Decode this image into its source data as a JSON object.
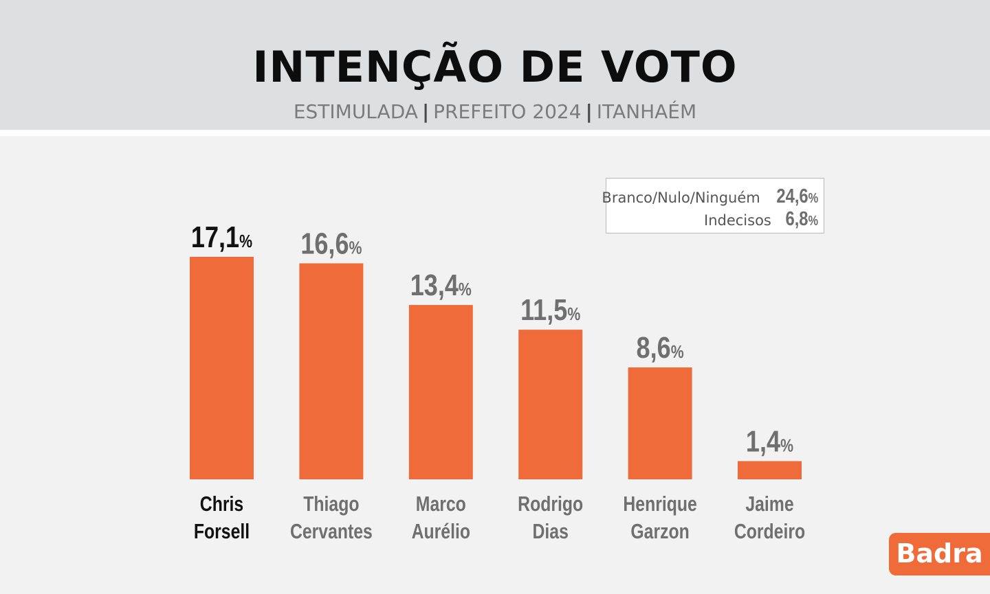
{
  "header": {
    "title": "INTENÇÃO DE VOTO",
    "subtitle_parts": [
      "ESTIMULADA",
      "PREFEITO 2024",
      "ITANHAÉM"
    ]
  },
  "legend": {
    "rows": [
      {
        "label": "Branco/Nulo/Ninguém",
        "value": "24,6",
        "unit": "%"
      },
      {
        "label": "Indecisos",
        "value": "6,8",
        "unit": "%"
      }
    ]
  },
  "logo": {
    "text": "Badra"
  },
  "colors": {
    "bar": "#ef6c3a",
    "highlight_text": "#111111",
    "muted_text": "#6f6f6f"
  },
  "chart_data": {
    "type": "bar",
    "categories": [
      [
        "Chris",
        "Forsell"
      ],
      [
        "Thiago",
        "Cervantes"
      ],
      [
        "Marco",
        "Aurélio"
      ],
      [
        "Rodrigo",
        "Dias"
      ],
      [
        "Henrique",
        "Garzon"
      ],
      [
        "Jaime",
        "Cordeiro"
      ]
    ],
    "values": [
      17.1,
      16.6,
      13.4,
      11.5,
      8.6,
      1.4
    ],
    "value_labels": [
      "17,1",
      "16,6",
      "13,4",
      "11,5",
      "8,6",
      "1,4"
    ],
    "unit": "%",
    "highlight_index": 0,
    "title": "INTENÇÃO DE VOTO",
    "xlabel": "",
    "ylabel": "",
    "ylim": [
      0,
      17.1
    ],
    "grid": false
  }
}
